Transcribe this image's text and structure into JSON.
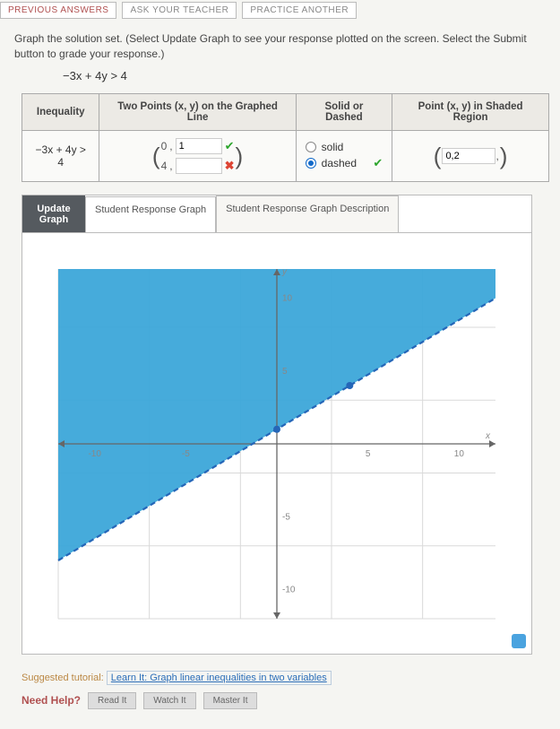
{
  "top": {
    "prev_answers": "PREVIOUS ANSWERS",
    "ask_teacher": "ASK YOUR TEACHER",
    "practice": "PRACTICE ANOTHER"
  },
  "instructions": "Graph the solution set. (Select Update Graph to see your response plotted on the screen. Select the Submit button to grade your response.)",
  "formula": "−3x + 4y > 4",
  "table": {
    "headers": {
      "inequality": "Inequality",
      "two_points": "Two Points (x, y) on the Graphed Line",
      "solid_dashed": "Solid or Dashed",
      "shaded_point": "Point (x, y) in Shaded Region"
    },
    "row": {
      "inequality": "−3x + 4y > 4",
      "point1_x": "0",
      "point1_y": "1",
      "point2_x": "4",
      "point2_y": "",
      "radio_solid": "solid",
      "radio_dashed": "dashed",
      "shaded_value": "0,2"
    }
  },
  "graph_tabs": {
    "update": "Update Graph",
    "student_graph": "Student Response Graph",
    "student_desc": "Student Response Graph Description"
  },
  "chart": {
    "type": "inequality-region",
    "xlim": [
      -12,
      12
    ],
    "ylim": [
      -12,
      12
    ],
    "xtick_step": 5,
    "ytick_step": 5,
    "xlabel": "x",
    "ylabel": "y",
    "tick_labels_x": [
      "-10",
      "-5",
      "5",
      "10"
    ],
    "tick_labels_y": [
      "10",
      "5",
      "-5",
      "-10"
    ],
    "grid_color": "#d9d9d9",
    "axis_color": "#666666",
    "background_color": "#ffffff",
    "region_color": "#3ca7d9",
    "region_opacity": 0.95,
    "line_color": "#2566b8",
    "line_dash": "6,4",
    "line_width": 2.2,
    "line_points": [
      [
        -12,
        -8
      ],
      [
        12,
        10
      ]
    ],
    "marked_points": [
      [
        0,
        1
      ],
      [
        4,
        4
      ]
    ],
    "marked_point_color": "#2566b8",
    "label_fontsize": 10,
    "label_color": "#888888"
  },
  "suggested": {
    "prefix": "Suggested tutorial: ",
    "link": "Learn It: Graph linear inequalities in two variables"
  },
  "need_help": {
    "label": "Need Help?",
    "read": "Read It",
    "watch": "Watch It",
    "master": "Master It"
  }
}
